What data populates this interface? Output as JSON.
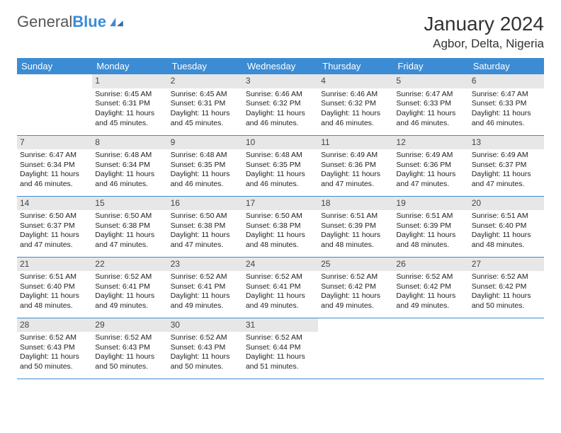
{
  "logo": {
    "word1": "General",
    "word2": "Blue"
  },
  "title": "January 2024",
  "location": "Agbor, Delta, Nigeria",
  "colors": {
    "accent": "#3b8cd4",
    "header_text": "#ffffff",
    "daynum_bg": "#e7e7e7"
  },
  "weekdays": [
    "Sunday",
    "Monday",
    "Tuesday",
    "Wednesday",
    "Thursday",
    "Friday",
    "Saturday"
  ],
  "weeks": [
    [
      null,
      {
        "n": "1",
        "sr": "6:45 AM",
        "ss": "6:31 PM",
        "dl": "11 hours and 45 minutes."
      },
      {
        "n": "2",
        "sr": "6:45 AM",
        "ss": "6:31 PM",
        "dl": "11 hours and 45 minutes."
      },
      {
        "n": "3",
        "sr": "6:46 AM",
        "ss": "6:32 PM",
        "dl": "11 hours and 46 minutes."
      },
      {
        "n": "4",
        "sr": "6:46 AM",
        "ss": "6:32 PM",
        "dl": "11 hours and 46 minutes."
      },
      {
        "n": "5",
        "sr": "6:47 AM",
        "ss": "6:33 PM",
        "dl": "11 hours and 46 minutes."
      },
      {
        "n": "6",
        "sr": "6:47 AM",
        "ss": "6:33 PM",
        "dl": "11 hours and 46 minutes."
      }
    ],
    [
      {
        "n": "7",
        "sr": "6:47 AM",
        "ss": "6:34 PM",
        "dl": "11 hours and 46 minutes."
      },
      {
        "n": "8",
        "sr": "6:48 AM",
        "ss": "6:34 PM",
        "dl": "11 hours and 46 minutes."
      },
      {
        "n": "9",
        "sr": "6:48 AM",
        "ss": "6:35 PM",
        "dl": "11 hours and 46 minutes."
      },
      {
        "n": "10",
        "sr": "6:48 AM",
        "ss": "6:35 PM",
        "dl": "11 hours and 46 minutes."
      },
      {
        "n": "11",
        "sr": "6:49 AM",
        "ss": "6:36 PM",
        "dl": "11 hours and 47 minutes."
      },
      {
        "n": "12",
        "sr": "6:49 AM",
        "ss": "6:36 PM",
        "dl": "11 hours and 47 minutes."
      },
      {
        "n": "13",
        "sr": "6:49 AM",
        "ss": "6:37 PM",
        "dl": "11 hours and 47 minutes."
      }
    ],
    [
      {
        "n": "14",
        "sr": "6:50 AM",
        "ss": "6:37 PM",
        "dl": "11 hours and 47 minutes."
      },
      {
        "n": "15",
        "sr": "6:50 AM",
        "ss": "6:38 PM",
        "dl": "11 hours and 47 minutes."
      },
      {
        "n": "16",
        "sr": "6:50 AM",
        "ss": "6:38 PM",
        "dl": "11 hours and 47 minutes."
      },
      {
        "n": "17",
        "sr": "6:50 AM",
        "ss": "6:38 PM",
        "dl": "11 hours and 48 minutes."
      },
      {
        "n": "18",
        "sr": "6:51 AM",
        "ss": "6:39 PM",
        "dl": "11 hours and 48 minutes."
      },
      {
        "n": "19",
        "sr": "6:51 AM",
        "ss": "6:39 PM",
        "dl": "11 hours and 48 minutes."
      },
      {
        "n": "20",
        "sr": "6:51 AM",
        "ss": "6:40 PM",
        "dl": "11 hours and 48 minutes."
      }
    ],
    [
      {
        "n": "21",
        "sr": "6:51 AM",
        "ss": "6:40 PM",
        "dl": "11 hours and 48 minutes."
      },
      {
        "n": "22",
        "sr": "6:52 AM",
        "ss": "6:41 PM",
        "dl": "11 hours and 49 minutes."
      },
      {
        "n": "23",
        "sr": "6:52 AM",
        "ss": "6:41 PM",
        "dl": "11 hours and 49 minutes."
      },
      {
        "n": "24",
        "sr": "6:52 AM",
        "ss": "6:41 PM",
        "dl": "11 hours and 49 minutes."
      },
      {
        "n": "25",
        "sr": "6:52 AM",
        "ss": "6:42 PM",
        "dl": "11 hours and 49 minutes."
      },
      {
        "n": "26",
        "sr": "6:52 AM",
        "ss": "6:42 PM",
        "dl": "11 hours and 49 minutes."
      },
      {
        "n": "27",
        "sr": "6:52 AM",
        "ss": "6:42 PM",
        "dl": "11 hours and 50 minutes."
      }
    ],
    [
      {
        "n": "28",
        "sr": "6:52 AM",
        "ss": "6:43 PM",
        "dl": "11 hours and 50 minutes."
      },
      {
        "n": "29",
        "sr": "6:52 AM",
        "ss": "6:43 PM",
        "dl": "11 hours and 50 minutes."
      },
      {
        "n": "30",
        "sr": "6:52 AM",
        "ss": "6:43 PM",
        "dl": "11 hours and 50 minutes."
      },
      {
        "n": "31",
        "sr": "6:52 AM",
        "ss": "6:44 PM",
        "dl": "11 hours and 51 minutes."
      },
      null,
      null,
      null
    ]
  ],
  "labels": {
    "sunrise": "Sunrise: ",
    "sunset": "Sunset: ",
    "daylight": "Daylight: "
  }
}
